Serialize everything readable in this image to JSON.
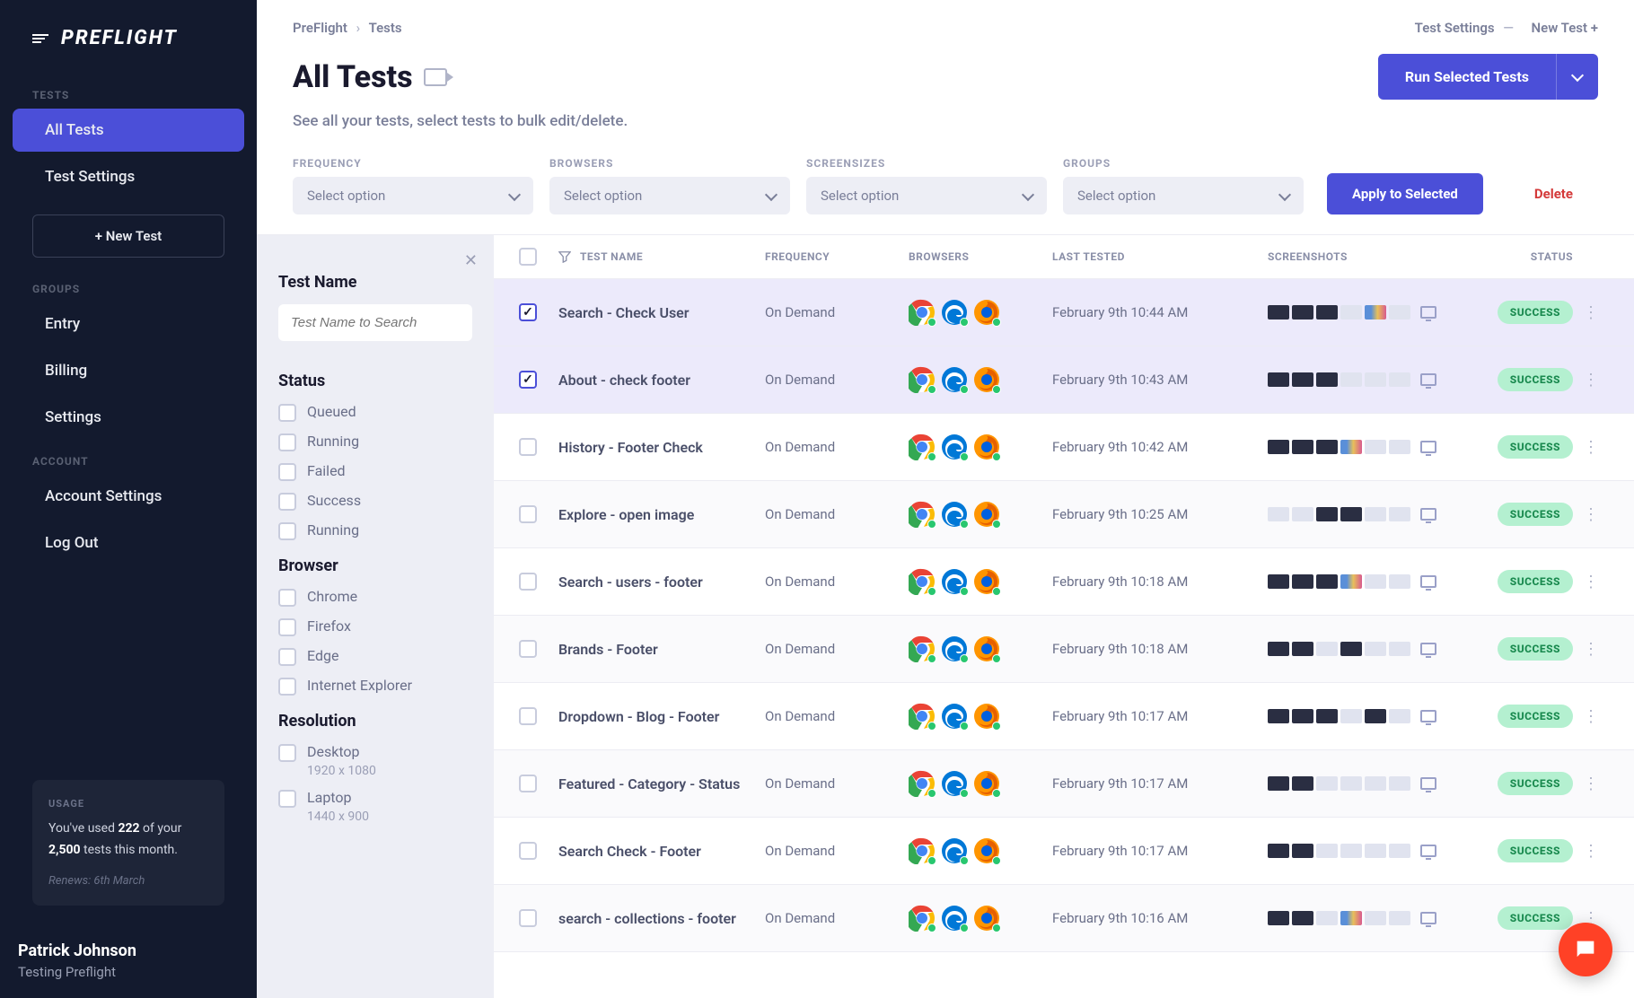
{
  "brand": "PREFLIGHT",
  "sidebar": {
    "sections": {
      "tests_label": "TESTS",
      "groups_label": "GROUPS",
      "account_label": "ACCOUNT"
    },
    "items": {
      "all_tests": "All Tests",
      "test_settings": "Test Settings",
      "new_test": "+ New Test",
      "entry": "Entry",
      "billing": "Billing",
      "settings": "Settings",
      "account_settings": "Account Settings",
      "log_out": "Log Out"
    },
    "usage": {
      "label": "USAGE",
      "text_prefix": "You've used ",
      "used": "222",
      "text_mid": " of your ",
      "limit": "2,500",
      "text_suffix": " tests this month.",
      "renew": "Renews: 6th March"
    },
    "user": {
      "name": "Patrick Johnson",
      "company": "Testing Preflight"
    }
  },
  "breadcrumb": {
    "root": "PreFlight",
    "current": "Tests",
    "settings": "Test Settings",
    "new": "New Test +"
  },
  "page": {
    "title": "All Tests",
    "subtitle": "See all your tests, select tests to bulk edit/delete.",
    "run_btn": "Run Selected Tests"
  },
  "bulk": {
    "labels": {
      "frequency": "FREQUENCY",
      "browsers": "BROWSERS",
      "screensizes": "SCREENSIZES",
      "groups": "GROUPS"
    },
    "placeholder": "Select option",
    "apply": "Apply to Selected",
    "delete": "Delete"
  },
  "filter": {
    "name_heading": "Test Name",
    "search_placeholder": "Test Name to Search",
    "status_heading": "Status",
    "status_options": [
      "Queued",
      "Running",
      "Failed",
      "Success",
      "Running"
    ],
    "browser_heading": "Browser",
    "browser_options": [
      "Chrome",
      "Firefox",
      "Edge",
      "Internet Explorer"
    ],
    "resolution_heading": "Resolution",
    "resolution_options": [
      {
        "label": "Desktop",
        "sub": "1920 x 1080"
      },
      {
        "label": "Laptop",
        "sub": "1440 x 900"
      }
    ]
  },
  "table": {
    "headers": {
      "name": "TEST NAME",
      "frequency": "FREQUENCY",
      "browsers": "BROWSERS",
      "last": "LAST TESTED",
      "shots": "SCREENSHOTS",
      "status": "STATUS"
    },
    "rows": [
      {
        "checked": true,
        "name": "Search - Check User",
        "freq": "On Demand",
        "last": "February 9th 10:44 AM",
        "status": "SUCCESS",
        "shots": [
          "d",
          "d",
          "d",
          "l",
          "m",
          "l"
        ]
      },
      {
        "checked": true,
        "name": "About - check footer",
        "freq": "On Demand",
        "last": "February 9th 10:43 AM",
        "status": "SUCCESS",
        "shots": [
          "d",
          "d",
          "d",
          "l",
          "l",
          "l"
        ]
      },
      {
        "checked": false,
        "name": "History - Footer Check",
        "freq": "On Demand",
        "last": "February 9th 10:42 AM",
        "status": "SUCCESS",
        "shots": [
          "d",
          "d",
          "d",
          "m",
          "l",
          "l"
        ]
      },
      {
        "checked": false,
        "name": "Explore - open image",
        "freq": "On Demand",
        "last": "February 9th 10:25 AM",
        "status": "SUCCESS",
        "shots": [
          "l",
          "l",
          "d",
          "d",
          "l",
          "l"
        ]
      },
      {
        "checked": false,
        "name": "Search - users - footer",
        "freq": "On Demand",
        "last": "February 9th 10:18 AM",
        "status": "SUCCESS",
        "shots": [
          "d",
          "d",
          "d",
          "m",
          "l",
          "l"
        ]
      },
      {
        "checked": false,
        "name": "Brands - Footer",
        "freq": "On Demand",
        "last": "February 9th 10:18 AM",
        "status": "SUCCESS",
        "shots": [
          "d",
          "d",
          "l",
          "d",
          "l",
          "l"
        ]
      },
      {
        "checked": false,
        "name": "Dropdown - Blog - Footer",
        "freq": "On Demand",
        "last": "February 9th 10:17 AM",
        "status": "SUCCESS",
        "shots": [
          "d",
          "d",
          "d",
          "l",
          "d",
          "l"
        ]
      },
      {
        "checked": false,
        "name": "Featured - Category - Status",
        "freq": "On Demand",
        "last": "February 9th 10:17 AM",
        "status": "SUCCESS",
        "shots": [
          "d",
          "d",
          "l",
          "l",
          "l",
          "l"
        ]
      },
      {
        "checked": false,
        "name": "Search Check - Footer",
        "freq": "On Demand",
        "last": "February 9th 10:17 AM",
        "status": "SUCCESS",
        "shots": [
          "d",
          "d",
          "l",
          "l",
          "l",
          "l"
        ]
      },
      {
        "checked": false,
        "name": "search - collections - footer",
        "freq": "On Demand",
        "last": "February 9th 10:16 AM",
        "status": "SUCCESS",
        "shots": [
          "d",
          "d",
          "l",
          "m",
          "l",
          "l"
        ]
      }
    ]
  },
  "colors": {
    "accent": "#4b4fd8",
    "success_bg": "#b4f0d0",
    "success_fg": "#1a8a4f",
    "danger": "#d43a3a"
  }
}
